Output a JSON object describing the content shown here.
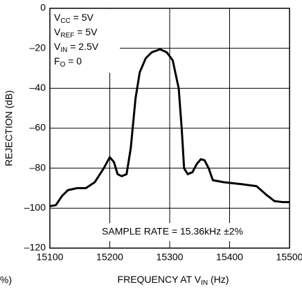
{
  "chart_data": {
    "type": "line",
    "xlabel": [
      "FREQUENCY AT V",
      "IN",
      " (Hz)"
    ],
    "ylabel": "REJECTION (dB)",
    "xlim": [
      15100,
      15500
    ],
    "ylim": [
      -120,
      0
    ],
    "xticks": [
      15100,
      15200,
      15300,
      15400,
      15500
    ],
    "yticks": [
      0,
      {
        "value": -20,
        "label": "–20"
      },
      {
        "value": -40,
        "label": "–40"
      },
      {
        "value": -60,
        "label": "–60"
      },
      {
        "value": -80,
        "label": "–80"
      },
      {
        "value": -100,
        "label": "–100"
      },
      {
        "value": -120,
        "label": "–120"
      }
    ],
    "grid": true,
    "color": "#000000",
    "conditions": [
      [
        "V",
        "CC",
        " = 5V"
      ],
      [
        "V",
        "REF",
        " = 5V"
      ],
      [
        "V",
        "IN",
        " = 2.5V"
      ],
      [
        "F",
        "O",
        " = 0"
      ]
    ],
    "note": "SAMPLE RATE = 15.36kHz ±2%",
    "cropped_text": "%)",
    "x": [
      15100,
      15110,
      15120,
      15130,
      15145,
      15160,
      15175,
      15190,
      15200,
      15207,
      15213,
      15220,
      15228,
      15235,
      15243,
      15250,
      15260,
      15270,
      15284,
      15295,
      15305,
      15315,
      15320,
      15324,
      15330,
      15338,
      15345,
      15352,
      15358,
      15365,
      15372,
      15390,
      15420,
      15445,
      15460,
      15475,
      15490,
      15500
    ],
    "values": [
      -99,
      -98.5,
      -94,
      -91,
      -90,
      -90,
      -87,
      -80,
      -74.5,
      -77,
      -83,
      -84,
      -83,
      -70,
      -45,
      -32,
      -25,
      -22,
      -20.5,
      -22,
      -26,
      -40,
      -60,
      -80,
      -83,
      -82,
      -78,
      -75.5,
      -76,
      -80,
      -86,
      -87,
      -88,
      -89,
      -93,
      -96.5,
      -97,
      -97
    ]
  }
}
